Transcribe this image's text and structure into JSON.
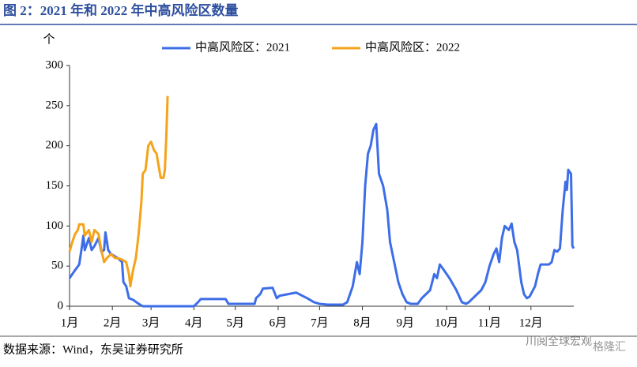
{
  "chart_data": {
    "type": "line",
    "title": "图 2：2021 年和 2022 年中高风险区数量",
    "y_unit": "个",
    "source": "数据来源：Wind，东吴证券研究所",
    "watermark": [
      "川阅全球宏观",
      "格隆汇"
    ],
    "xlim": [
      0,
      365
    ],
    "xticks": [
      {
        "value": 0,
        "label": "1月"
      },
      {
        "value": 31,
        "label": "2月"
      },
      {
        "value": 59,
        "label": "3月"
      },
      {
        "value": 90,
        "label": "4月"
      },
      {
        "value": 120,
        "label": "5月"
      },
      {
        "value": 151,
        "label": "6月"
      },
      {
        "value": 181,
        "label": "7月"
      },
      {
        "value": 212,
        "label": "8月"
      },
      {
        "value": 243,
        "label": "9月"
      },
      {
        "value": 273,
        "label": "10月"
      },
      {
        "value": 304,
        "label": "11月"
      },
      {
        "value": 334,
        "label": "12月"
      }
    ],
    "ylim": [
      0,
      300
    ],
    "yticks": [
      0,
      50,
      100,
      150,
      200,
      250,
      300
    ],
    "legend": "top",
    "series": [
      {
        "name": "中高风险区：2021",
        "color": "#3d6ee8",
        "x": [
          0,
          4,
          7,
          9,
          10,
          11,
          14,
          16,
          18,
          21,
          23,
          25,
          26,
          28,
          30,
          33,
          35,
          38,
          39,
          41,
          43,
          46,
          50,
          53,
          90,
          93,
          95,
          113,
          115,
          134,
          135,
          138,
          140,
          147,
          150,
          152,
          158,
          164,
          172,
          177,
          181,
          187,
          198,
          201,
          205,
          208,
          210,
          212,
          214,
          216,
          218,
          220,
          222,
          224,
          227,
          230,
          232,
          235,
          238,
          241,
          244,
          247,
          252,
          255,
          258,
          261,
          264,
          266,
          268,
          271,
          275,
          280,
          284,
          287,
          289,
          292,
          295,
          298,
          301,
          304,
          307,
          309,
          311,
          313,
          315,
          318,
          320,
          322,
          324,
          327,
          329,
          331,
          333,
          337,
          339,
          341,
          347,
          349,
          351,
          353,
          355,
          357,
          359,
          360,
          361,
          363,
          364,
          365
        ],
        "values": [
          35,
          45,
          52,
          75,
          88,
          70,
          85,
          70,
          75,
          85,
          68,
          70,
          92,
          70,
          65,
          62,
          60,
          55,
          30,
          25,
          10,
          8,
          3,
          0,
          0,
          5,
          9,
          9,
          3,
          3,
          10,
          15,
          22,
          23,
          10,
          13,
          15,
          17,
          10,
          5,
          3,
          2,
          2,
          5,
          25,
          55,
          40,
          80,
          150,
          190,
          200,
          220,
          227,
          165,
          150,
          120,
          80,
          55,
          30,
          15,
          5,
          3,
          3,
          10,
          15,
          20,
          40,
          35,
          52,
          45,
          35,
          20,
          5,
          3,
          5,
          10,
          15,
          20,
          30,
          50,
          65,
          72,
          55,
          85,
          100,
          95,
          103,
          80,
          70,
          30,
          15,
          10,
          12,
          25,
          40,
          52,
          52,
          55,
          70,
          68,
          72,
          120,
          155,
          145,
          170,
          165,
          75,
          72
        ]
      },
      {
        "name": "中高风险区：2022",
        "color": "#f5a31a",
        "x": [
          0,
          2,
          4,
          6,
          7,
          10,
          11,
          14,
          16,
          18,
          21,
          23,
          25,
          27,
          30,
          33,
          35,
          38,
          41,
          43,
          44,
          46,
          48,
          50,
          52,
          53,
          55,
          57,
          59,
          61,
          63,
          66,
          68,
          69,
          70,
          71
        ],
        "values": [
          68,
          80,
          90,
          95,
          102,
          102,
          88,
          95,
          80,
          95,
          90,
          70,
          55,
          60,
          65,
          60,
          60,
          58,
          55,
          40,
          25,
          45,
          60,
          90,
          130,
          165,
          170,
          200,
          205,
          195,
          190,
          160,
          160,
          170,
          210,
          262
        ]
      }
    ]
  }
}
